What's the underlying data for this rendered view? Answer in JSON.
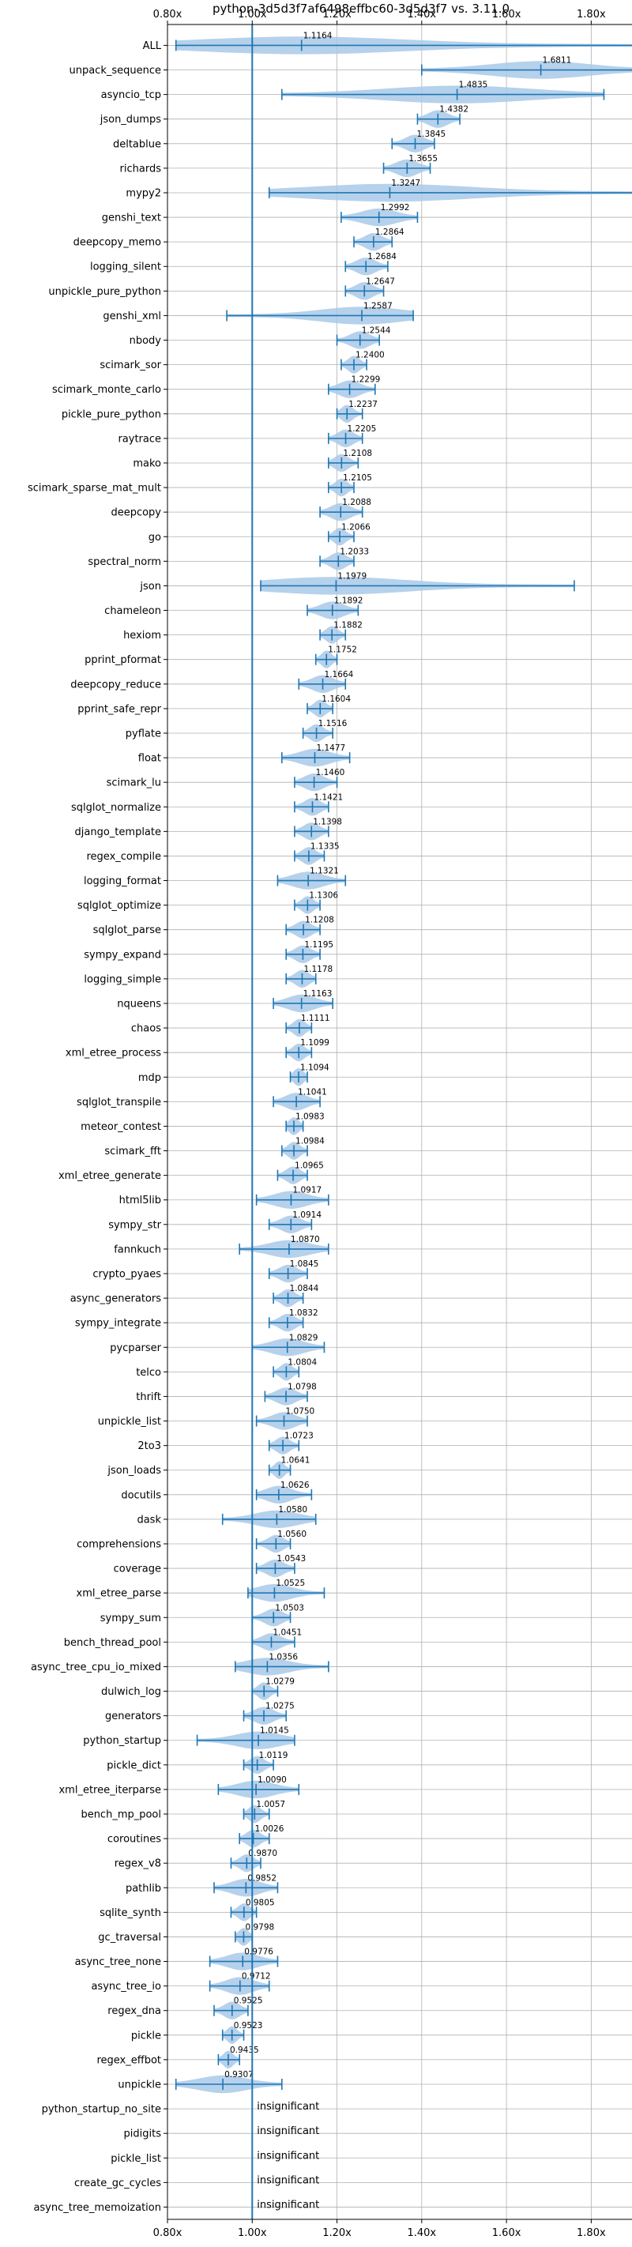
{
  "chart_data": {
    "type": "violin",
    "title": "python-3d5d3f7af6498effbc60-3d5d3f7 vs. 3.11.0",
    "xlim": [
      0.8,
      1.9
    ],
    "xticks": [
      "0.80x",
      "1.00x",
      "1.20x",
      "1.40x",
      "1.60x",
      "1.80x"
    ],
    "xtick_values": [
      0.8,
      1.0,
      1.2,
      1.4,
      1.6,
      1.8
    ],
    "reference_line": 1.0,
    "grid": true,
    "insignificant_label": "insignificant",
    "colors": {
      "violin": "#a9c9e8",
      "line": "#1f77b4",
      "grid": "#b0b0b0"
    },
    "benchmarks": [
      {
        "name": "ALL",
        "value": 1.1164,
        "label": "1.1164",
        "min": 0.82,
        "max": 1.91
      },
      {
        "name": "unpack_sequence",
        "value": 1.6811,
        "label": "1.6811",
        "min": 1.4,
        "max": 1.91
      },
      {
        "name": "asyncio_tcp",
        "value": 1.4835,
        "label": "1.4835",
        "min": 1.07,
        "max": 1.83
      },
      {
        "name": "json_dumps",
        "value": 1.4382,
        "label": "1.4382",
        "min": 1.39,
        "max": 1.49
      },
      {
        "name": "deltablue",
        "value": 1.3845,
        "label": "1.3845",
        "min": 1.33,
        "max": 1.43
      },
      {
        "name": "richards",
        "value": 1.3655,
        "label": "1.3655",
        "min": 1.31,
        "max": 1.42
      },
      {
        "name": "mypy2",
        "value": 1.3247,
        "label": "1.3247",
        "min": 1.04,
        "max": 1.91
      },
      {
        "name": "genshi_text",
        "value": 1.2992,
        "label": "1.2992",
        "min": 1.21,
        "max": 1.39
      },
      {
        "name": "deepcopy_memo",
        "value": 1.2864,
        "label": "1.2864",
        "min": 1.24,
        "max": 1.33
      },
      {
        "name": "logging_silent",
        "value": 1.2684,
        "label": "1.2684",
        "min": 1.22,
        "max": 1.32
      },
      {
        "name": "unpickle_pure_python",
        "value": 1.2647,
        "label": "1.2647",
        "min": 1.22,
        "max": 1.31
      },
      {
        "name": "genshi_xml",
        "value": 1.2587,
        "label": "1.2587",
        "min": 0.94,
        "max": 1.38
      },
      {
        "name": "nbody",
        "value": 1.2544,
        "label": "1.2544",
        "min": 1.2,
        "max": 1.3
      },
      {
        "name": "scimark_sor",
        "value": 1.24,
        "label": "1.2400",
        "min": 1.21,
        "max": 1.27
      },
      {
        "name": "scimark_monte_carlo",
        "value": 1.2299,
        "label": "1.2299",
        "min": 1.18,
        "max": 1.29
      },
      {
        "name": "pickle_pure_python",
        "value": 1.2237,
        "label": "1.2237",
        "min": 1.2,
        "max": 1.26
      },
      {
        "name": "raytrace",
        "value": 1.2205,
        "label": "1.2205",
        "min": 1.18,
        "max": 1.26
      },
      {
        "name": "mako",
        "value": 1.2108,
        "label": "1.2108",
        "min": 1.18,
        "max": 1.25
      },
      {
        "name": "scimark_sparse_mat_mult",
        "value": 1.2105,
        "label": "1.2105",
        "min": 1.18,
        "max": 1.24
      },
      {
        "name": "deepcopy",
        "value": 1.2088,
        "label": "1.2088",
        "min": 1.16,
        "max": 1.26
      },
      {
        "name": "go",
        "value": 1.2066,
        "label": "1.2066",
        "min": 1.18,
        "max": 1.24
      },
      {
        "name": "spectral_norm",
        "value": 1.2033,
        "label": "1.2033",
        "min": 1.16,
        "max": 1.24
      },
      {
        "name": "json",
        "value": 1.1979,
        "label": "1.1979",
        "min": 1.02,
        "max": 1.76
      },
      {
        "name": "chameleon",
        "value": 1.1892,
        "label": "1.1892",
        "min": 1.13,
        "max": 1.25
      },
      {
        "name": "hexiom",
        "value": 1.1882,
        "label": "1.1882",
        "min": 1.16,
        "max": 1.22
      },
      {
        "name": "pprint_pformat",
        "value": 1.1752,
        "label": "1.1752",
        "min": 1.15,
        "max": 1.2
      },
      {
        "name": "deepcopy_reduce",
        "value": 1.1664,
        "label": "1.1664",
        "min": 1.11,
        "max": 1.22
      },
      {
        "name": "pprint_safe_repr",
        "value": 1.1604,
        "label": "1.1604",
        "min": 1.13,
        "max": 1.19
      },
      {
        "name": "pyflate",
        "value": 1.1516,
        "label": "1.1516",
        "min": 1.12,
        "max": 1.19
      },
      {
        "name": "float",
        "value": 1.1477,
        "label": "1.1477",
        "min": 1.07,
        "max": 1.23
      },
      {
        "name": "scimark_lu",
        "value": 1.146,
        "label": "1.1460",
        "min": 1.1,
        "max": 1.2
      },
      {
        "name": "sqlglot_normalize",
        "value": 1.1421,
        "label": "1.1421",
        "min": 1.1,
        "max": 1.18
      },
      {
        "name": "django_template",
        "value": 1.1398,
        "label": "1.1398",
        "min": 1.1,
        "max": 1.18
      },
      {
        "name": "regex_compile",
        "value": 1.1335,
        "label": "1.1335",
        "min": 1.1,
        "max": 1.17
      },
      {
        "name": "logging_format",
        "value": 1.1321,
        "label": "1.1321",
        "min": 1.06,
        "max": 1.22
      },
      {
        "name": "sqlglot_optimize",
        "value": 1.1306,
        "label": "1.1306",
        "min": 1.1,
        "max": 1.16
      },
      {
        "name": "sqlglot_parse",
        "value": 1.1208,
        "label": "1.1208",
        "min": 1.08,
        "max": 1.16
      },
      {
        "name": "sympy_expand",
        "value": 1.1195,
        "label": "1.1195",
        "min": 1.08,
        "max": 1.16
      },
      {
        "name": "logging_simple",
        "value": 1.1178,
        "label": "1.1178",
        "min": 1.08,
        "max": 1.15
      },
      {
        "name": "nqueens",
        "value": 1.1163,
        "label": "1.1163",
        "min": 1.05,
        "max": 1.19
      },
      {
        "name": "chaos",
        "value": 1.1111,
        "label": "1.1111",
        "min": 1.08,
        "max": 1.14
      },
      {
        "name": "xml_etree_process",
        "value": 1.1099,
        "label": "1.1099",
        "min": 1.08,
        "max": 1.14
      },
      {
        "name": "mdp",
        "value": 1.1094,
        "label": "1.1094",
        "min": 1.09,
        "max": 1.13
      },
      {
        "name": "sqlglot_transpile",
        "value": 1.1041,
        "label": "1.1041",
        "min": 1.05,
        "max": 1.16
      },
      {
        "name": "meteor_contest",
        "value": 1.0983,
        "label": "1.0983",
        "min": 1.08,
        "max": 1.12
      },
      {
        "name": "scimark_fft",
        "value": 1.0984,
        "label": "1.0984",
        "min": 1.07,
        "max": 1.13
      },
      {
        "name": "xml_etree_generate",
        "value": 1.0965,
        "label": "1.0965",
        "min": 1.06,
        "max": 1.13
      },
      {
        "name": "html5lib",
        "value": 1.0917,
        "label": "1.0917",
        "min": 1.01,
        "max": 1.18
      },
      {
        "name": "sympy_str",
        "value": 1.0914,
        "label": "1.0914",
        "min": 1.04,
        "max": 1.14
      },
      {
        "name": "fannkuch",
        "value": 1.087,
        "label": "1.0870",
        "min": 0.97,
        "max": 1.18
      },
      {
        "name": "crypto_pyaes",
        "value": 1.0845,
        "label": "1.0845",
        "min": 1.04,
        "max": 1.13
      },
      {
        "name": "async_generators",
        "value": 1.0844,
        "label": "1.0844",
        "min": 1.05,
        "max": 1.12
      },
      {
        "name": "sympy_integrate",
        "value": 1.0832,
        "label": "1.0832",
        "min": 1.04,
        "max": 1.12
      },
      {
        "name": "pycparser",
        "value": 1.0829,
        "label": "1.0829",
        "min": 1.0,
        "max": 1.17
      },
      {
        "name": "telco",
        "value": 1.0804,
        "label": "1.0804",
        "min": 1.05,
        "max": 1.11
      },
      {
        "name": "thrift",
        "value": 1.0798,
        "label": "1.0798",
        "min": 1.03,
        "max": 1.13
      },
      {
        "name": "unpickle_list",
        "value": 1.075,
        "label": "1.0750",
        "min": 1.01,
        "max": 1.13
      },
      {
        "name": "2to3",
        "value": 1.0723,
        "label": "1.0723",
        "min": 1.04,
        "max": 1.11
      },
      {
        "name": "json_loads",
        "value": 1.0641,
        "label": "1.0641",
        "min": 1.04,
        "max": 1.09
      },
      {
        "name": "docutils",
        "value": 1.0626,
        "label": "1.0626",
        "min": 1.01,
        "max": 1.14
      },
      {
        "name": "dask",
        "value": 1.058,
        "label": "1.0580",
        "min": 0.93,
        "max": 1.15
      },
      {
        "name": "comprehensions",
        "value": 1.056,
        "label": "1.0560",
        "min": 1.01,
        "max": 1.09
      },
      {
        "name": "coverage",
        "value": 1.0543,
        "label": "1.0543",
        "min": 1.01,
        "max": 1.1
      },
      {
        "name": "xml_etree_parse",
        "value": 1.0525,
        "label": "1.0525",
        "min": 0.99,
        "max": 1.17
      },
      {
        "name": "sympy_sum",
        "value": 1.0503,
        "label": "1.0503",
        "min": 1.0,
        "max": 1.09
      },
      {
        "name": "bench_thread_pool",
        "value": 1.0451,
        "label": "1.0451",
        "min": 1.0,
        "max": 1.1
      },
      {
        "name": "async_tree_cpu_io_mixed",
        "value": 1.0356,
        "label": "1.0356",
        "min": 0.96,
        "max": 1.18
      },
      {
        "name": "dulwich_log",
        "value": 1.0279,
        "label": "1.0279",
        "min": 1.0,
        "max": 1.06
      },
      {
        "name": "generators",
        "value": 1.0275,
        "label": "1.0275",
        "min": 0.98,
        "max": 1.08
      },
      {
        "name": "python_startup",
        "value": 1.0145,
        "label": "1.0145",
        "min": 0.87,
        "max": 1.1
      },
      {
        "name": "pickle_dict",
        "value": 1.0119,
        "label": "1.0119",
        "min": 0.98,
        "max": 1.05
      },
      {
        "name": "xml_etree_iterparse",
        "value": 1.009,
        "label": "1.0090",
        "min": 0.92,
        "max": 1.11
      },
      {
        "name": "bench_mp_pool",
        "value": 1.0057,
        "label": "1.0057",
        "min": 0.98,
        "max": 1.04
      },
      {
        "name": "coroutines",
        "value": 1.0026,
        "label": "1.0026",
        "min": 0.97,
        "max": 1.04
      },
      {
        "name": "regex_v8",
        "value": 0.987,
        "label": "0.9870",
        "min": 0.95,
        "max": 1.02
      },
      {
        "name": "pathlib",
        "value": 0.9852,
        "label": "0.9852",
        "min": 0.91,
        "max": 1.06
      },
      {
        "name": "sqlite_synth",
        "value": 0.9805,
        "label": "0.9805",
        "min": 0.95,
        "max": 1.01
      },
      {
        "name": "gc_traversal",
        "value": 0.9798,
        "label": "0.9798",
        "min": 0.96,
        "max": 1.0
      },
      {
        "name": "async_tree_none",
        "value": 0.9776,
        "label": "0.9776",
        "min": 0.9,
        "max": 1.06
      },
      {
        "name": "async_tree_io",
        "value": 0.9712,
        "label": "0.9712",
        "min": 0.9,
        "max": 1.04
      },
      {
        "name": "regex_dna",
        "value": 0.9525,
        "label": "0.9525",
        "min": 0.91,
        "max": 0.99
      },
      {
        "name": "pickle",
        "value": 0.9523,
        "label": "0.9523",
        "min": 0.93,
        "max": 0.98
      },
      {
        "name": "regex_effbot",
        "value": 0.9435,
        "label": "0.9435",
        "min": 0.92,
        "max": 0.97
      },
      {
        "name": "unpickle",
        "value": 0.9307,
        "label": "0.9307",
        "min": 0.82,
        "max": 1.07
      },
      {
        "name": "python_startup_no_site",
        "insignificant": true
      },
      {
        "name": "pidigits",
        "insignificant": true
      },
      {
        "name": "pickle_list",
        "insignificant": true
      },
      {
        "name": "create_gc_cycles",
        "insignificant": true
      },
      {
        "name": "async_tree_memoization",
        "insignificant": true
      }
    ]
  }
}
